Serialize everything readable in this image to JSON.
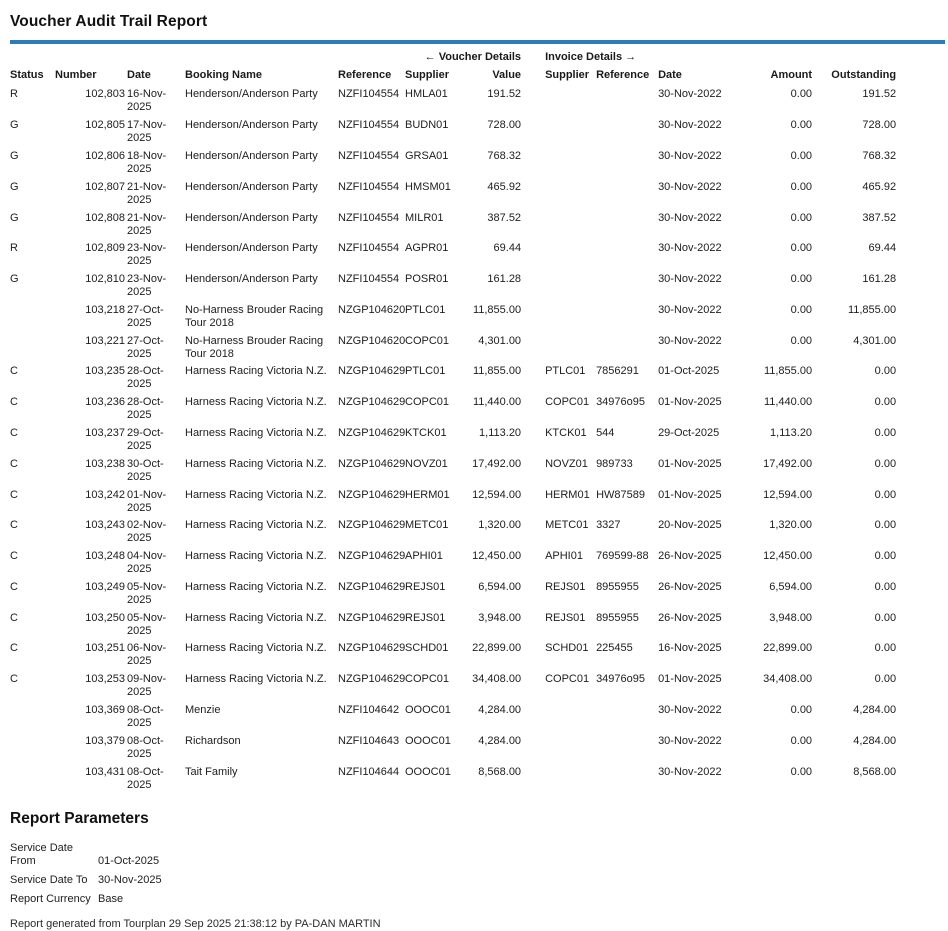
{
  "report": {
    "title": "Voucher Audit Trail Report",
    "accent_color": "#2b7cb9"
  },
  "table": {
    "group_headers": {
      "voucher": "← Voucher Details",
      "invoice": "Invoice Details →"
    },
    "columns": [
      "Status",
      "Number",
      "Date",
      "Booking Name",
      "Reference",
      "Supplier",
      "Value",
      "Supplier",
      "Reference",
      "Date",
      "Amount",
      "Outstanding"
    ],
    "rows": [
      {
        "status": "R",
        "number": "102,803",
        "date": "16-Nov-2025",
        "booking": "Henderson/Anderson Party",
        "reference": "NZFI104554",
        "supplier": "HMLA01",
        "value": "191.52",
        "inv_supplier": "",
        "inv_reference": "",
        "inv_date": "30-Nov-2022",
        "amount": "0.00",
        "outstanding": "191.52"
      },
      {
        "status": "G",
        "number": "102,805",
        "date": "17-Nov-2025",
        "booking": "Henderson/Anderson Party",
        "reference": "NZFI104554",
        "supplier": "BUDN01",
        "value": "728.00",
        "inv_supplier": "",
        "inv_reference": "",
        "inv_date": "30-Nov-2022",
        "amount": "0.00",
        "outstanding": "728.00"
      },
      {
        "status": "G",
        "number": "102,806",
        "date": "18-Nov-2025",
        "booking": "Henderson/Anderson Party",
        "reference": "NZFI104554",
        "supplier": "GRSA01",
        "value": "768.32",
        "inv_supplier": "",
        "inv_reference": "",
        "inv_date": "30-Nov-2022",
        "amount": "0.00",
        "outstanding": "768.32"
      },
      {
        "status": "G",
        "number": "102,807",
        "date": "21-Nov-2025",
        "booking": "Henderson/Anderson Party",
        "reference": "NZFI104554",
        "supplier": "HMSM01",
        "value": "465.92",
        "inv_supplier": "",
        "inv_reference": "",
        "inv_date": "30-Nov-2022",
        "amount": "0.00",
        "outstanding": "465.92"
      },
      {
        "status": "G",
        "number": "102,808",
        "date": "21-Nov-2025",
        "booking": "Henderson/Anderson Party",
        "reference": "NZFI104554",
        "supplier": "MILR01",
        "value": "387.52",
        "inv_supplier": "",
        "inv_reference": "",
        "inv_date": "30-Nov-2022",
        "amount": "0.00",
        "outstanding": "387.52"
      },
      {
        "status": "R",
        "number": "102,809",
        "date": "23-Nov-2025",
        "booking": "Henderson/Anderson Party",
        "reference": "NZFI104554",
        "supplier": "AGPR01",
        "value": "69.44",
        "inv_supplier": "",
        "inv_reference": "",
        "inv_date": "30-Nov-2022",
        "amount": "0.00",
        "outstanding": "69.44"
      },
      {
        "status": "G",
        "number": "102,810",
        "date": "23-Nov-2025",
        "booking": "Henderson/Anderson Party",
        "reference": "NZFI104554",
        "supplier": "POSR01",
        "value": "161.28",
        "inv_supplier": "",
        "inv_reference": "",
        "inv_date": "30-Nov-2022",
        "amount": "0.00",
        "outstanding": "161.28"
      },
      {
        "status": "",
        "number": "103,218",
        "date": "27-Oct-2025",
        "booking": "No-Harness Brouder Racing Tour 2018",
        "reference": "NZGP104620",
        "supplier": "PTLC01",
        "value": "11,855.00",
        "inv_supplier": "",
        "inv_reference": "",
        "inv_date": "30-Nov-2022",
        "amount": "0.00",
        "outstanding": "11,855.00"
      },
      {
        "status": "",
        "number": "103,221",
        "date": "27-Oct-2025",
        "booking": "No-Harness Brouder Racing Tour 2018",
        "reference": "NZGP104620",
        "supplier": "COPC01",
        "value": "4,301.00",
        "inv_supplier": "",
        "inv_reference": "",
        "inv_date": "30-Nov-2022",
        "amount": "0.00",
        "outstanding": "4,301.00"
      },
      {
        "status": "C",
        "number": "103,235",
        "date": "28-Oct-2025",
        "booking": "Harness Racing Victoria N.Z.",
        "reference": "NZGP104629",
        "supplier": "PTLC01",
        "value": "11,855.00",
        "inv_supplier": "PTLC01",
        "inv_reference": "7856291",
        "inv_date": "01-Oct-2025",
        "amount": "11,855.00",
        "outstanding": "0.00"
      },
      {
        "status": "C",
        "number": "103,236",
        "date": "28-Oct-2025",
        "booking": "Harness Racing Victoria N.Z.",
        "reference": "NZGP104629",
        "supplier": "COPC01",
        "value": "11,440.00",
        "inv_supplier": "COPC01",
        "inv_reference": "34976o95",
        "inv_date": "01-Nov-2025",
        "amount": "11,440.00",
        "outstanding": "0.00"
      },
      {
        "status": "C",
        "number": "103,237",
        "date": "29-Oct-2025",
        "booking": "Harness Racing Victoria N.Z.",
        "reference": "NZGP104629",
        "supplier": "KTCK01",
        "value": "1,113.20",
        "inv_supplier": "KTCK01",
        "inv_reference": "544",
        "inv_date": "29-Oct-2025",
        "amount": "1,113.20",
        "outstanding": "0.00"
      },
      {
        "status": "C",
        "number": "103,238",
        "date": "30-Oct-2025",
        "booking": "Harness Racing Victoria N.Z.",
        "reference": "NZGP104629",
        "supplier": "NOVZ01",
        "value": "17,492.00",
        "inv_supplier": "NOVZ01",
        "inv_reference": "989733",
        "inv_date": "01-Nov-2025",
        "amount": "17,492.00",
        "outstanding": "0.00"
      },
      {
        "status": "C",
        "number": "103,242",
        "date": "01-Nov-2025",
        "booking": "Harness Racing Victoria N.Z.",
        "reference": "NZGP104629",
        "supplier": "HERM01",
        "value": "12,594.00",
        "inv_supplier": "HERM01",
        "inv_reference": "HW87589",
        "inv_date": "01-Nov-2025",
        "amount": "12,594.00",
        "outstanding": "0.00"
      },
      {
        "status": "C",
        "number": "103,243",
        "date": "02-Nov-2025",
        "booking": "Harness Racing Victoria N.Z.",
        "reference": "NZGP104629",
        "supplier": "METC01",
        "value": "1,320.00",
        "inv_supplier": "METC01",
        "inv_reference": "3327",
        "inv_date": "20-Nov-2025",
        "amount": "1,320.00",
        "outstanding": "0.00"
      },
      {
        "status": "C",
        "number": "103,248",
        "date": "04-Nov-2025",
        "booking": "Harness Racing Victoria N.Z.",
        "reference": "NZGP104629",
        "supplier": "APHI01",
        "value": "12,450.00",
        "inv_supplier": "APHI01",
        "inv_reference": "769599-88",
        "inv_date": "26-Nov-2025",
        "amount": "12,450.00",
        "outstanding": "0.00"
      },
      {
        "status": "C",
        "number": "103,249",
        "date": "05-Nov-2025",
        "booking": "Harness Racing Victoria N.Z.",
        "reference": "NZGP104629",
        "supplier": "REJS01",
        "value": "6,594.00",
        "inv_supplier": "REJS01",
        "inv_reference": "8955955",
        "inv_date": "26-Nov-2025",
        "amount": "6,594.00",
        "outstanding": "0.00"
      },
      {
        "status": "C",
        "number": "103,250",
        "date": "05-Nov-2025",
        "booking": "Harness Racing Victoria N.Z.",
        "reference": "NZGP104629",
        "supplier": "REJS01",
        "value": "3,948.00",
        "inv_supplier": "REJS01",
        "inv_reference": "8955955",
        "inv_date": "26-Nov-2025",
        "amount": "3,948.00",
        "outstanding": "0.00"
      },
      {
        "status": "C",
        "number": "103,251",
        "date": "06-Nov-2025",
        "booking": "Harness Racing Victoria N.Z.",
        "reference": "NZGP104629",
        "supplier": "SCHD01",
        "value": "22,899.00",
        "inv_supplier": "SCHD01",
        "inv_reference": "225455",
        "inv_date": "16-Nov-2025",
        "amount": "22,899.00",
        "outstanding": "0.00"
      },
      {
        "status": "C",
        "number": "103,253",
        "date": "09-Nov-2025",
        "booking": "Harness Racing Victoria N.Z.",
        "reference": "NZGP104629",
        "supplier": "COPC01",
        "value": "34,408.00",
        "inv_supplier": "COPC01",
        "inv_reference": "34976o95",
        "inv_date": "01-Nov-2025",
        "amount": "34,408.00",
        "outstanding": "0.00"
      },
      {
        "status": "",
        "number": "103,369",
        "date": "08-Oct-2025",
        "booking": "Menzie",
        "reference": "NZFI104642",
        "supplier": "OOOC01",
        "value": "4,284.00",
        "inv_supplier": "",
        "inv_reference": "",
        "inv_date": "30-Nov-2022",
        "amount": "0.00",
        "outstanding": "4,284.00"
      },
      {
        "status": "",
        "number": "103,379",
        "date": "08-Oct-2025",
        "booking": "Richardson",
        "reference": "NZFI104643",
        "supplier": "OOOC01",
        "value": "4,284.00",
        "inv_supplier": "",
        "inv_reference": "",
        "inv_date": "30-Nov-2022",
        "amount": "0.00",
        "outstanding": "4,284.00"
      },
      {
        "status": "",
        "number": "103,431",
        "date": "08-Oct-2025",
        "booking": "Tait Family",
        "reference": "NZFI104644",
        "supplier": "OOOC01",
        "value": "8,568.00",
        "inv_supplier": "",
        "inv_reference": "",
        "inv_date": "30-Nov-2022",
        "amount": "0.00",
        "outstanding": "8,568.00"
      }
    ]
  },
  "parameters": {
    "heading": "Report Parameters",
    "items": [
      {
        "label": "Service Date From",
        "value": "01-Oct-2025"
      },
      {
        "label": "Service Date To",
        "value": "30-Nov-2025"
      },
      {
        "label": "Report Currency",
        "value": "Base"
      }
    ]
  },
  "footer": {
    "text": "Report generated from Tourplan 29 Sep 2025 21:38:12 by PA-DAN MARTIN"
  }
}
